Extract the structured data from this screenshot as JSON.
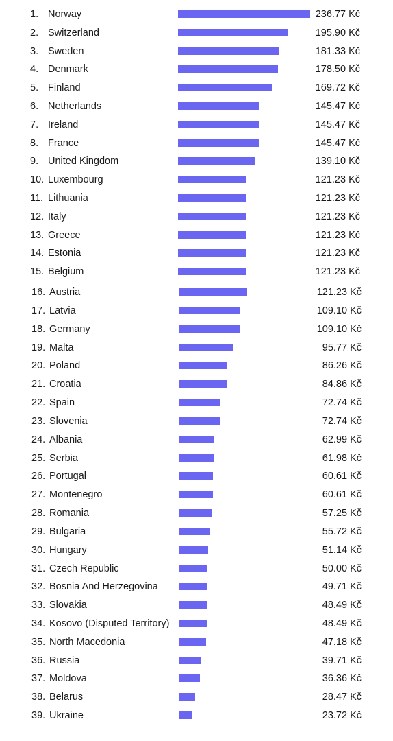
{
  "chart_data": {
    "type": "bar",
    "orientation": "horizontal",
    "bar_color": "#6b66f2",
    "unit_suffix": " Kč",
    "groups": [
      {
        "items": [
          {
            "rank": "1.",
            "name": "Norway",
            "value": 236.77,
            "label": "236.77 Kč"
          },
          {
            "rank": "2.",
            "name": "Switzerland",
            "value": 195.9,
            "label": "195.90 Kč"
          },
          {
            "rank": "3.",
            "name": "Sweden",
            "value": 181.33,
            "label": "181.33 Kč"
          },
          {
            "rank": "4.",
            "name": "Denmark",
            "value": 178.5,
            "label": "178.50 Kč"
          },
          {
            "rank": "5.",
            "name": "Finland",
            "value": 169.72,
            "label": "169.72 Kč"
          },
          {
            "rank": "6.",
            "name": "Netherlands",
            "value": 145.47,
            "label": "145.47 Kč"
          },
          {
            "rank": "7.",
            "name": "Ireland",
            "value": 145.47,
            "label": "145.47 Kč"
          },
          {
            "rank": "8.",
            "name": "France",
            "value": 145.47,
            "label": "145.47 Kč"
          },
          {
            "rank": "9.",
            "name": "United Kingdom",
            "value": 139.1,
            "label": "139.10 Kč"
          },
          {
            "rank": "10.",
            "name": "Luxembourg",
            "value": 121.23,
            "label": "121.23 Kč"
          },
          {
            "rank": "11.",
            "name": "Lithuania",
            "value": 121.23,
            "label": "121.23 Kč"
          },
          {
            "rank": "12.",
            "name": "Italy",
            "value": 121.23,
            "label": "121.23 Kč"
          },
          {
            "rank": "13.",
            "name": "Greece",
            "value": 121.23,
            "label": "121.23 Kč"
          },
          {
            "rank": "14.",
            "name": "Estonia",
            "value": 121.23,
            "label": "121.23 Kč"
          },
          {
            "rank": "15.",
            "name": "Belgium",
            "value": 121.23,
            "label": "121.23 Kč"
          }
        ]
      },
      {
        "items": [
          {
            "rank": "16.",
            "name": "Austria",
            "value": 121.23,
            "label": "121.23 Kč"
          },
          {
            "rank": "17.",
            "name": "Latvia",
            "value": 109.1,
            "label": "109.10 Kč"
          },
          {
            "rank": "18.",
            "name": "Germany",
            "value": 109.1,
            "label": "109.10 Kč"
          },
          {
            "rank": "19.",
            "name": "Malta",
            "value": 95.77,
            "label": "95.77 Kč"
          },
          {
            "rank": "20.",
            "name": "Poland",
            "value": 86.26,
            "label": "86.26 Kč"
          },
          {
            "rank": "21.",
            "name": "Croatia",
            "value": 84.86,
            "label": "84.86 Kč"
          },
          {
            "rank": "22.",
            "name": "Spain",
            "value": 72.74,
            "label": "72.74 Kč"
          },
          {
            "rank": "23.",
            "name": "Slovenia",
            "value": 72.74,
            "label": "72.74 Kč"
          },
          {
            "rank": "24.",
            "name": "Albania",
            "value": 62.99,
            "label": "62.99 Kč"
          },
          {
            "rank": "25.",
            "name": "Serbia",
            "value": 61.98,
            "label": "61.98 Kč"
          },
          {
            "rank": "26.",
            "name": "Portugal",
            "value": 60.61,
            "label": "60.61 Kč"
          },
          {
            "rank": "27.",
            "name": "Montenegro",
            "value": 60.61,
            "label": "60.61 Kč"
          },
          {
            "rank": "28.",
            "name": "Romania",
            "value": 57.25,
            "label": "57.25 Kč"
          },
          {
            "rank": "29.",
            "name": "Bulgaria",
            "value": 55.72,
            "label": "55.72 Kč"
          },
          {
            "rank": "30.",
            "name": "Hungary",
            "value": 51.14,
            "label": "51.14 Kč"
          },
          {
            "rank": "31.",
            "name": "Czech Republic",
            "value": 50.0,
            "label": "50.00 Kč"
          },
          {
            "rank": "32.",
            "name": "Bosnia And Herzegovina",
            "value": 49.71,
            "label": "49.71 Kč"
          },
          {
            "rank": "33.",
            "name": "Slovakia",
            "value": 48.49,
            "label": "48.49 Kč"
          },
          {
            "rank": "34.",
            "name": "Kosovo (Disputed Territory)",
            "value": 48.49,
            "label": "48.49 Kč"
          },
          {
            "rank": "35.",
            "name": "North Macedonia",
            "value": 47.18,
            "label": "47.18 Kč"
          },
          {
            "rank": "36.",
            "name": "Russia",
            "value": 39.71,
            "label": "39.71 Kč"
          },
          {
            "rank": "37.",
            "name": "Moldova",
            "value": 36.36,
            "label": "36.36 Kč"
          },
          {
            "rank": "38.",
            "name": "Belarus",
            "value": 28.47,
            "label": "28.47 Kč"
          },
          {
            "rank": "39.",
            "name": "Ukraine",
            "value": 23.72,
            "label": "23.72 Kč"
          }
        ]
      }
    ]
  }
}
